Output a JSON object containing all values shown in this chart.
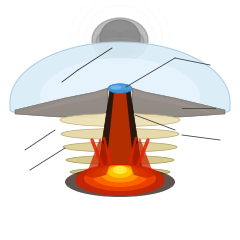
{
  "bg_color": "#ffffff",
  "ice_outer_color": "#d8edf8",
  "ice_mid_color": "#e8f4fb",
  "ice_inner_color": "#f0f8ff",
  "ice_edge_color": "#b0cce0",
  "rock_color": "#8a8078",
  "rock_dark": "#6a6058",
  "rock_light": "#aaa098",
  "stratum1_color": "#e8ddb8",
  "stratum2_color": "#ddd0a0",
  "stratum3_color": "#d0c090",
  "stratum_edge": "#b0a070",
  "crater_lake_color": "#4499dd",
  "crater_lake_light": "#88ccff",
  "conduit_color": "#3a2010",
  "lava_outer": "#cc2200",
  "lava_mid": "#ff6600",
  "lava_inner": "#ffaa00",
  "lava_core": "#ffee44",
  "lava_splash": "#dd3300",
  "steam_dark": "#777777",
  "steam_mid": "#999999",
  "steam_light": "#bbbbbb",
  "steam_ring": "#cccccc",
  "line_color": "#555555",
  "pillow_lava": "#cc4400"
}
